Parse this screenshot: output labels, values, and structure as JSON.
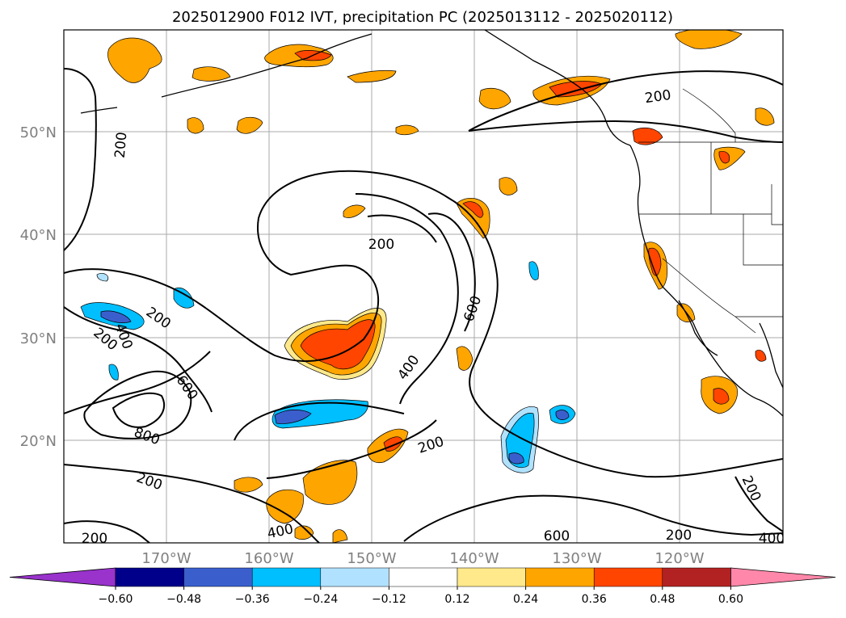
{
  "title": "2025012900 F012 IVT, precipitation PC (2025013112 - 2025020112)",
  "lat_labels": [
    "50°N",
    "40°N",
    "30°N",
    "20°N"
  ],
  "lon_labels": [
    "170°W",
    "160°W",
    "150°W",
    "140°W",
    "130°W",
    "120°W"
  ],
  "contour_labels": [
    "200",
    "200",
    "200",
    "200",
    "200",
    "200",
    "200",
    "200",
    "200",
    "200",
    "400",
    "400",
    "400",
    "400",
    "600",
    "600",
    "600",
    "800"
  ],
  "colorbar": {
    "ticks": [
      "−0.60",
      "−0.48",
      "−0.36",
      "−0.24",
      "−0.12",
      "0.12",
      "0.24",
      "0.36",
      "0.48",
      "0.60"
    ],
    "colors": [
      "#9933cc",
      "#00008b",
      "#3a5fcd",
      "#00bfff",
      "#b0e2ff",
      "#ffffff",
      "#ffe98a",
      "#ffa500",
      "#ff4500",
      "#b22222",
      "#ff88aa"
    ],
    "extend": "both"
  },
  "colors": {
    "coast": "#000000",
    "contour": "#000000",
    "grid": "#aaaaaa"
  }
}
